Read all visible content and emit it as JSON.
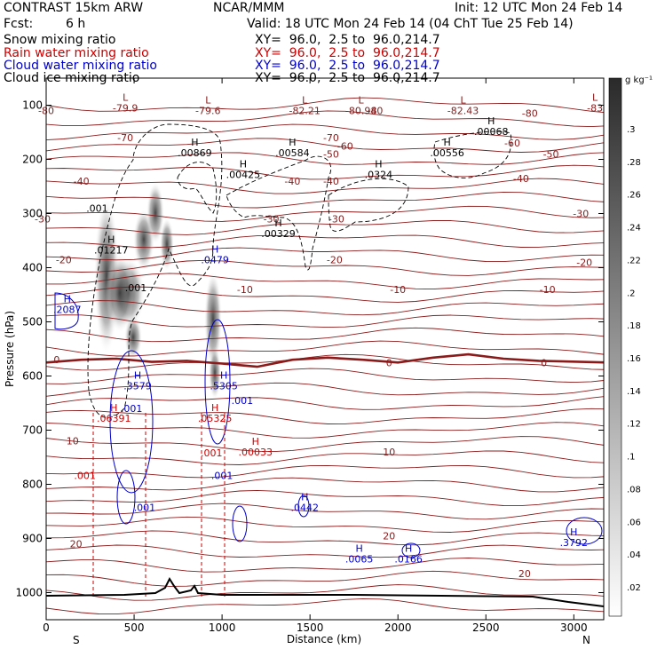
{
  "header": {
    "model": "CONTRAST 15km ARW",
    "org": "NCAR/MMM",
    "init": "Init: 12 UTC Mon 24 Feb 14",
    "fcst_label": "Fcst:",
    "fcst_value": "6 h",
    "valid": "Valid: 18 UTC Mon 24 Feb 14 (04 ChT Tue 25 Feb 14)",
    "fields": [
      {
        "name": "Snow mixing ratio",
        "color": "#000000",
        "xy": "XY=  96.0,  2.5 to  96.0,214.7"
      },
      {
        "name": "Rain water mixing ratio",
        "color": "#cc0000",
        "xy": "XY=  96.0,  2.5 to  96.0,214.7"
      },
      {
        "name": "Cloud water mixing ratio",
        "color": "#0000cc",
        "xy": "XY=  96.0,  2.5 to  96.0,214.7"
      },
      {
        "name": "Cloud ice mixing ratio",
        "color": "#000000",
        "xy": "XY=  96.0,  2.5 to  96.0,214.7"
      }
    ]
  },
  "chart_data": {
    "type": "cross-section",
    "xlabel": "Distance (km)",
    "ylabel": "Pressure (hPa)",
    "xlim": [
      0,
      3170
    ],
    "ylim": [
      1050,
      50
    ],
    "x_ticks": [
      0,
      500,
      1000,
      1500,
      2000,
      2500,
      3000
    ],
    "y_ticks": [
      100,
      200,
      300,
      400,
      500,
      600,
      700,
      800,
      900,
      1000
    ],
    "x_end_labels": {
      "left": "S",
      "right": "N"
    },
    "colorbar": {
      "unit": "g kg⁻¹",
      "ticks": [
        ".3",
        ".28",
        ".26",
        ".24",
        ".22",
        ".2",
        ".18",
        ".16",
        ".14",
        ".12",
        ".1",
        ".08",
        ".06",
        ".04",
        ".02"
      ]
    },
    "colors": {
      "temperature": "#8b1a1a",
      "rain": "#cc0000",
      "cloud_water": "#0000cc",
      "ice": "#000000",
      "terrain": "#000000"
    },
    "temperature_contours": [
      {
        "label": "-80",
        "x": 0,
        "p": 110
      },
      {
        "label": "-80",
        "x": 1870,
        "p": 110
      },
      {
        "label": "-80",
        "x": 2750,
        "p": 115
      },
      {
        "label": "-70",
        "x": 450,
        "p": 160
      },
      {
        "label": "-70",
        "x": 1620,
        "p": 160
      },
      {
        "label": "-60",
        "x": 1700,
        "p": 175
      },
      {
        "label": "-60",
        "x": 2650,
        "p": 170
      },
      {
        "label": "-50",
        "x": 1620,
        "p": 190
      },
      {
        "label": "-50",
        "x": 2870,
        "p": 190
      },
      {
        "label": "-40",
        "x": 200,
        "p": 240
      },
      {
        "label": "-40",
        "x": 1400,
        "p": 240
      },
      {
        "label": "-40",
        "x": 1620,
        "p": 240
      },
      {
        "label": "-40",
        "x": 2700,
        "p": 235
      },
      {
        "label": "-30",
        "x": -20,
        "p": 310
      },
      {
        "label": "-30",
        "x": 1280,
        "p": 310
      },
      {
        "label": "-30",
        "x": 1650,
        "p": 310
      },
      {
        "label": "-30",
        "x": 3040,
        "p": 300
      },
      {
        "label": "-20",
        "x": 100,
        "p": 385
      },
      {
        "label": "-20",
        "x": 1640,
        "p": 385
      },
      {
        "label": "-20",
        "x": 3060,
        "p": 390
      },
      {
        "label": "-10",
        "x": 1130,
        "p": 440
      },
      {
        "label": "-10",
        "x": 2000,
        "p": 440
      },
      {
        "label": "-10",
        "x": 2850,
        "p": 440
      },
      {
        "label": "0",
        "x": 60,
        "p": 570
      },
      {
        "label": "0",
        "x": 1950,
        "p": 575
      },
      {
        "label": "0",
        "x": 2830,
        "p": 575
      },
      {
        "label": "10",
        "x": 150,
        "p": 720
      },
      {
        "label": "10",
        "x": 1950,
        "p": 740
      },
      {
        "label": "20",
        "x": 170,
        "p": 910
      },
      {
        "label": "20",
        "x": 1950,
        "p": 895
      },
      {
        "label": "20",
        "x": 2720,
        "p": 965
      }
    ],
    "maxima": [
      {
        "marker": "L",
        "value": "-79.9",
        "x": 450,
        "p": 105,
        "color": "#8b1a1a"
      },
      {
        "marker": "L",
        "value": "-79.6",
        "x": 920,
        "p": 110,
        "color": "#8b1a1a"
      },
      {
        "marker": "L",
        "value": "-82.21",
        "x": 1470,
        "p": 110,
        "color": "#8b1a1a"
      },
      {
        "marker": "L",
        "value": "-80.94",
        "x": 1790,
        "p": 110,
        "color": "#8b1a1a"
      },
      {
        "marker": "L",
        "value": "-82.43",
        "x": 2370,
        "p": 110,
        "color": "#8b1a1a"
      },
      {
        "marker": "L",
        "value": "-83",
        "x": 3120,
        "p": 105,
        "color": "#8b1a1a"
      },
      {
        "marker": "H",
        "value": ".00068",
        "x": 2530,
        "p": 148,
        "color": "#000000"
      },
      {
        "marker": "H",
        "value": ".00869",
        "x": 845,
        "p": 188,
        "color": "#000000"
      },
      {
        "marker": "H",
        "value": ".00584",
        "x": 1400,
        "p": 188,
        "color": "#000000"
      },
      {
        "marker": "H",
        "value": ".00556",
        "x": 2280,
        "p": 188,
        "color": "#000000"
      },
      {
        "marker": "H",
        "value": ".00425",
        "x": 1120,
        "p": 228,
        "color": "#000000"
      },
      {
        "marker": "H",
        "value": ".0324",
        "x": 1890,
        "p": 228,
        "color": "#000000"
      },
      {
        "marker": "H",
        "value": ".00329",
        "x": 1320,
        "p": 337,
        "color": "#000000"
      },
      {
        "marker": "H",
        "value": ".01217",
        "x": 370,
        "p": 367,
        "color": "#000000"
      },
      {
        "marker": "",
        "value": ".001",
        "x": 290,
        "p": 290,
        "color": "#000000"
      },
      {
        "marker": "",
        "value": ".001",
        "x": 510,
        "p": 437,
        "color": "#000000"
      },
      {
        "marker": "H",
        "value": ".0479",
        "x": 960,
        "p": 385,
        "color": "#0000cc"
      },
      {
        "marker": "H",
        "value": ".2087",
        "x": 120,
        "p": 477,
        "color": "#0000cc"
      },
      {
        "marker": "H",
        "value": ".3579",
        "x": 520,
        "p": 618,
        "color": "#0000cc"
      },
      {
        "marker": "H",
        "value": ".5305",
        "x": 1010,
        "p": 618,
        "color": "#0000cc"
      },
      {
        "marker": "",
        "value": ".001",
        "x": 1115,
        "p": 645,
        "color": "#0000cc"
      },
      {
        "marker": "",
        "value": ".001",
        "x": 485,
        "p": 660,
        "color": "#0000cc"
      },
      {
        "marker": "H",
        "value": ".06391",
        "x": 385,
        "p": 678,
        "color": "#cc0000"
      },
      {
        "marker": "H",
        "value": ".05325",
        "x": 960,
        "p": 678,
        "color": "#cc0000"
      },
      {
        "marker": "H",
        "value": ".00033",
        "x": 1190,
        "p": 740,
        "color": "#cc0000"
      },
      {
        "marker": "",
        "value": ".001",
        "x": 940,
        "p": 742,
        "color": "#cc0000"
      },
      {
        "marker": "",
        "value": ".001",
        "x": 1000,
        "p": 784,
        "color": "#0000cc"
      },
      {
        "marker": "",
        "value": ".001",
        "x": 220,
        "p": 784,
        "color": "#cc0000"
      },
      {
        "marker": "",
        "value": ".001",
        "x": 560,
        "p": 843,
        "color": "#0000cc"
      },
      {
        "marker": "H",
        "value": ".0442",
        "x": 1470,
        "p": 843,
        "color": "#0000cc"
      },
      {
        "marker": "H",
        "value": ".0065",
        "x": 1780,
        "p": 938,
        "color": "#0000cc"
      },
      {
        "marker": "H",
        "value": ".0166",
        "x": 2060,
        "p": 938,
        "color": "#0000cc"
      },
      {
        "marker": "H",
        "value": ".3792",
        "x": 3000,
        "p": 907,
        "color": "#0000cc"
      }
    ]
  }
}
